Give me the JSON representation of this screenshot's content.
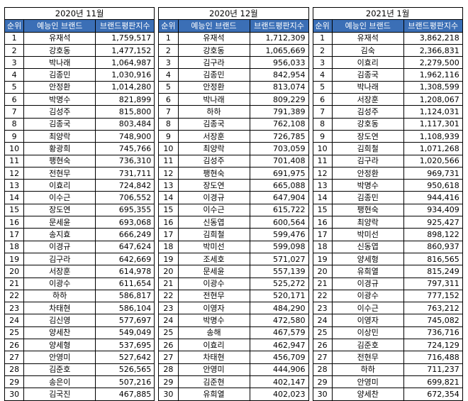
{
  "header_color": "#3b6fb6",
  "columns": {
    "rank": "순위",
    "name": "예능인 브랜드",
    "index": "브랜드평판지수"
  },
  "tables": [
    {
      "month": "2020년 11월",
      "rows": [
        {
          "rank": "1",
          "name": "유재석",
          "index": "1,759,517"
        },
        {
          "rank": "2",
          "name": "강호동",
          "index": "1,477,152"
        },
        {
          "rank": "3",
          "name": "박나래",
          "index": "1,064,987"
        },
        {
          "rank": "4",
          "name": "김종민",
          "index": "1,030,916"
        },
        {
          "rank": "5",
          "name": "안정환",
          "index": "1,014,280"
        },
        {
          "rank": "6",
          "name": "박명수",
          "index": "821,899"
        },
        {
          "rank": "7",
          "name": "김성주",
          "index": "815,800"
        },
        {
          "rank": "8",
          "name": "김종국",
          "index": "803,484"
        },
        {
          "rank": "9",
          "name": "최양락",
          "index": "748,900"
        },
        {
          "rank": "10",
          "name": "황광희",
          "index": "745,766"
        },
        {
          "rank": "11",
          "name": "팽현숙",
          "index": "736,310"
        },
        {
          "rank": "12",
          "name": "전현무",
          "index": "731,711"
        },
        {
          "rank": "13",
          "name": "이효리",
          "index": "724,842"
        },
        {
          "rank": "14",
          "name": "이수근",
          "index": "706,552"
        },
        {
          "rank": "15",
          "name": "장도연",
          "index": "695,355"
        },
        {
          "rank": "16",
          "name": "문세윤",
          "index": "693,068"
        },
        {
          "rank": "17",
          "name": "송지효",
          "index": "666,249"
        },
        {
          "rank": "18",
          "name": "이경규",
          "index": "647,624"
        },
        {
          "rank": "19",
          "name": "김구라",
          "index": "642,669"
        },
        {
          "rank": "20",
          "name": "서장훈",
          "index": "614,978"
        },
        {
          "rank": "21",
          "name": "이광수",
          "index": "611,654"
        },
        {
          "rank": "22",
          "name": "하하",
          "index": "586,817"
        },
        {
          "rank": "23",
          "name": "차태현",
          "index": "586,104"
        },
        {
          "rank": "24",
          "name": "김신영",
          "index": "577,697"
        },
        {
          "rank": "25",
          "name": "양세찬",
          "index": "549,049"
        },
        {
          "rank": "26",
          "name": "양세형",
          "index": "537,695"
        },
        {
          "rank": "27",
          "name": "안영미",
          "index": "527,642"
        },
        {
          "rank": "28",
          "name": "김준호",
          "index": "526,565"
        },
        {
          "rank": "29",
          "name": "송은이",
          "index": "507,216"
        },
        {
          "rank": "30",
          "name": "김국진",
          "index": "467,885"
        }
      ]
    },
    {
      "month": "2020년 12월",
      "rows": [
        {
          "rank": "1",
          "name": "유재석",
          "index": "1,712,309"
        },
        {
          "rank": "2",
          "name": "강호동",
          "index": "1,065,669"
        },
        {
          "rank": "3",
          "name": "김구라",
          "index": "956,033"
        },
        {
          "rank": "4",
          "name": "김종민",
          "index": "842,954"
        },
        {
          "rank": "5",
          "name": "안정환",
          "index": "813,074"
        },
        {
          "rank": "6",
          "name": "박나래",
          "index": "809,229"
        },
        {
          "rank": "7",
          "name": "하하",
          "index": "791,389"
        },
        {
          "rank": "8",
          "name": "김종국",
          "index": "762,108"
        },
        {
          "rank": "9",
          "name": "서장훈",
          "index": "726,785"
        },
        {
          "rank": "10",
          "name": "최양락",
          "index": "703,059"
        },
        {
          "rank": "11",
          "name": "김성주",
          "index": "701,408"
        },
        {
          "rank": "12",
          "name": "팽현숙",
          "index": "691,975"
        },
        {
          "rank": "13",
          "name": "장도연",
          "index": "665,088"
        },
        {
          "rank": "14",
          "name": "이경규",
          "index": "647,904"
        },
        {
          "rank": "15",
          "name": "이수근",
          "index": "615,722"
        },
        {
          "rank": "16",
          "name": "신동엽",
          "index": "600,564"
        },
        {
          "rank": "17",
          "name": "김희철",
          "index": "599,476"
        },
        {
          "rank": "18",
          "name": "박미선",
          "index": "599,098"
        },
        {
          "rank": "19",
          "name": "조세호",
          "index": "571,027"
        },
        {
          "rank": "20",
          "name": "문세윤",
          "index": "557,139"
        },
        {
          "rank": "21",
          "name": "이광수",
          "index": "525,272"
        },
        {
          "rank": "22",
          "name": "전현무",
          "index": "520,171"
        },
        {
          "rank": "23",
          "name": "이영자",
          "index": "484,290"
        },
        {
          "rank": "24",
          "name": "박명수",
          "index": "472,580"
        },
        {
          "rank": "25",
          "name": "송해",
          "index": "467,579"
        },
        {
          "rank": "26",
          "name": "이효리",
          "index": "462,947"
        },
        {
          "rank": "27",
          "name": "차태현",
          "index": "456,709"
        },
        {
          "rank": "28",
          "name": "안영미",
          "index": "444,906"
        },
        {
          "rank": "29",
          "name": "김준현",
          "index": "402,147"
        },
        {
          "rank": "30",
          "name": "유희열",
          "index": "402,023"
        }
      ]
    },
    {
      "month": "2021년 1월",
      "rows": [
        {
          "rank": "1",
          "name": "유재석",
          "index": "3,862,218"
        },
        {
          "rank": "2",
          "name": "김숙",
          "index": "2,366,831"
        },
        {
          "rank": "3",
          "name": "이효리",
          "index": "2,279,500"
        },
        {
          "rank": "4",
          "name": "김종국",
          "index": "1,962,116"
        },
        {
          "rank": "5",
          "name": "박나래",
          "index": "1,308,599"
        },
        {
          "rank": "6",
          "name": "서장훈",
          "index": "1,208,067"
        },
        {
          "rank": "7",
          "name": "김성주",
          "index": "1,124,031"
        },
        {
          "rank": "8",
          "name": "강호동",
          "index": "1,117,301"
        },
        {
          "rank": "9",
          "name": "장도연",
          "index": "1,108,939"
        },
        {
          "rank": "10",
          "name": "김희철",
          "index": "1,071,268"
        },
        {
          "rank": "11",
          "name": "김구라",
          "index": "1,020,566"
        },
        {
          "rank": "12",
          "name": "안정환",
          "index": "969,731"
        },
        {
          "rank": "13",
          "name": "박명수",
          "index": "950,618"
        },
        {
          "rank": "14",
          "name": "김종민",
          "index": "944,416"
        },
        {
          "rank": "15",
          "name": "팽현숙",
          "index": "934,409"
        },
        {
          "rank": "16",
          "name": "최양락",
          "index": "925,427"
        },
        {
          "rank": "17",
          "name": "박미선",
          "index": "898,122"
        },
        {
          "rank": "18",
          "name": "신동엽",
          "index": "860,937"
        },
        {
          "rank": "19",
          "name": "양세형",
          "index": "816,565"
        },
        {
          "rank": "20",
          "name": "유희열",
          "index": "815,249"
        },
        {
          "rank": "21",
          "name": "이경규",
          "index": "797,311"
        },
        {
          "rank": "22",
          "name": "이광수",
          "index": "777,152"
        },
        {
          "rank": "23",
          "name": "이수근",
          "index": "763,212"
        },
        {
          "rank": "24",
          "name": "이영자",
          "index": "745,082"
        },
        {
          "rank": "25",
          "name": "이상민",
          "index": "736,716"
        },
        {
          "rank": "26",
          "name": "김준호",
          "index": "724,129"
        },
        {
          "rank": "27",
          "name": "전현무",
          "index": "716,488"
        },
        {
          "rank": "28",
          "name": "하하",
          "index": "711,237"
        },
        {
          "rank": "29",
          "name": "안영미",
          "index": "699,821"
        },
        {
          "rank": "30",
          "name": "양세찬",
          "index": "672,354"
        }
      ]
    }
  ]
}
